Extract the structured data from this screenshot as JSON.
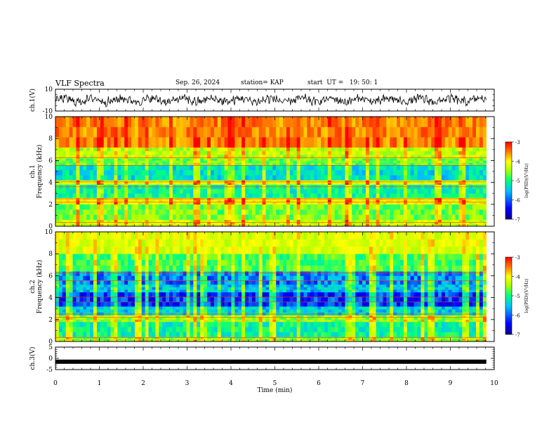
{
  "header": {
    "title": "VLF Spectra",
    "date": "Sep. 26, 2024",
    "station": "station= KAP",
    "start": "start  UT =   19: 50: 1"
  },
  "chart_data": [
    {
      "type": "line",
      "panel": "waveform-ch1",
      "ylabel": "ch.1(V)",
      "ylim": [
        -10,
        10
      ],
      "yticks": [
        "10",
        "-10"
      ],
      "xlim": [
        0,
        10
      ],
      "description_series": "noisy waveform around 0 V with amplitude roughly ±5 V",
      "series": [
        {
          "values": [
            0,
            3,
            -2,
            4,
            -3,
            2,
            -4,
            5,
            -1,
            3,
            -2,
            4,
            -3,
            1,
            -4,
            3,
            -2,
            5,
            -3,
            2
          ]
        }
      ]
    },
    {
      "type": "heatmap",
      "panel": "spectrogram-ch1",
      "ylabel": "ch.1\nFrequency (kHz)",
      "ylim": [
        0,
        10
      ],
      "yticks": [
        "0",
        "2",
        "4",
        "6",
        "8",
        "10"
      ],
      "xlim": [
        0,
        10
      ],
      "colorbar": {
        "label": "log(PSD)(V²/Hz)",
        "range": [
          -7,
          -3
        ],
        "ticks": [
          "-3",
          "-4",
          "-5",
          "-6",
          "-7"
        ]
      },
      "frequency_bands_khz": [
        {
          "from": 0,
          "to": 0.6,
          "level": -4.5
        },
        {
          "from": 0.6,
          "to": 2.0,
          "level": -4.9
        },
        {
          "from": 2.0,
          "to": 2.6,
          "level": -4.2
        },
        {
          "from": 2.6,
          "to": 3.8,
          "level": -5.4
        },
        {
          "from": 3.8,
          "to": 4.2,
          "level": -4.3
        },
        {
          "from": 4.2,
          "to": 5.6,
          "level": -5.6
        },
        {
          "from": 5.6,
          "to": 6.2,
          "level": -5.0
        },
        {
          "from": 6.2,
          "to": 7.2,
          "level": -4.6
        },
        {
          "from": 7.2,
          "to": 10.0,
          "level": -3.6
        }
      ]
    },
    {
      "type": "heatmap",
      "panel": "spectrogram-ch2",
      "ylabel": "ch.2\nFrequency (kHz)",
      "ylim": [
        0,
        10
      ],
      "yticks": [
        "0",
        "2",
        "4",
        "6",
        "8",
        "10"
      ],
      "xlim": [
        0,
        10
      ],
      "colorbar": {
        "label": "log(PSD)(V²/Hz)",
        "range": [
          -7,
          -3
        ],
        "ticks": [
          "-3",
          "-4",
          "-5",
          "-6",
          "-7"
        ]
      },
      "frequency_bands_khz": [
        {
          "from": 0,
          "to": 0.4,
          "level": -4.8
        },
        {
          "from": 0.4,
          "to": 1.8,
          "level": -5.4
        },
        {
          "from": 1.8,
          "to": 2.4,
          "level": -4.8
        },
        {
          "from": 2.4,
          "to": 3.2,
          "level": -5.7
        },
        {
          "from": 3.2,
          "to": 4.5,
          "level": -6.3
        },
        {
          "from": 4.5,
          "to": 5.2,
          "level": -5.8
        },
        {
          "from": 5.2,
          "to": 6.4,
          "level": -6.0
        },
        {
          "from": 6.4,
          "to": 8.0,
          "level": -5.1
        },
        {
          "from": 8.0,
          "to": 10.0,
          "level": -4.4
        }
      ]
    },
    {
      "type": "line",
      "panel": "waveform-ch3",
      "ylabel": "ch.3(V)",
      "ylim": [
        -5,
        5
      ],
      "yticks": [
        "5",
        "0",
        "-5"
      ],
      "xlim": [
        0,
        10
      ],
      "xlabel": "Time (min)",
      "xticks": [
        "0",
        "1",
        "2",
        "3",
        "4",
        "5",
        "6",
        "7",
        "8",
        "9",
        "10"
      ],
      "series": [
        {
          "values": [
            -1.5,
            -1.5
          ]
        }
      ]
    }
  ],
  "colors": {
    "jet": [
      "#00008f",
      "#0000ff",
      "#00bfff",
      "#00ff80",
      "#b0ff00",
      "#ffff00",
      "#ff8000",
      "#ff0000"
    ]
  }
}
